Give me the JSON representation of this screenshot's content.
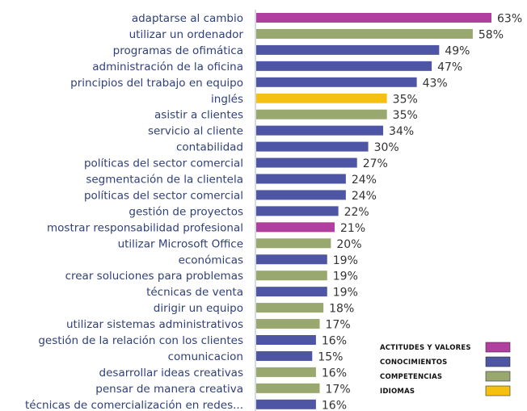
{
  "chart_data": {
    "type": "bar",
    "orientation": "horizontal",
    "title": "",
    "xlabel": "",
    "ylabel": "",
    "xlim": [
      0,
      63
    ],
    "value_suffix": "%",
    "grid": false,
    "legend_position": "bottom-right",
    "legend": [
      {
        "key": "actitudes",
        "label": "ACTITUDES Y VALORES",
        "color": "#b03fa0"
      },
      {
        "key": "conocimientos",
        "label": "CONOCIMIENTOS",
        "color": "#4d55a4"
      },
      {
        "key": "competencias",
        "label": "COMPETENCIAS",
        "color": "#98a86e"
      },
      {
        "key": "idiomas",
        "label": "IDIOMAS",
        "color": "#f5c010"
      }
    ],
    "categories": [
      "adaptarse al cambio",
      "utilizar un ordenador",
      "programas de ofimática",
      "administración de la oficina",
      "principios del trabajo en equipo",
      "inglés",
      "asistir a clientes",
      "servicio al cliente",
      "contabilidad",
      "políticas del sector comercial",
      "segmentación de la clientela",
      "políticas del sector comercial",
      "gestión de proyectos",
      "mostrar responsabilidad profesional",
      "utilizar Microsoft Office",
      "económicas",
      "crear soluciones para problemas",
      "técnicas de venta",
      "dirigir un equipo",
      "utilizar sistemas administrativos",
      "gestión de la relación con los clientes",
      "comunicacion",
      "desarrollar ideas creativas",
      "pensar de manera creativa",
      "técnicas de comercialización en redes..."
    ],
    "values": [
      63,
      58,
      49,
      47,
      43,
      35,
      35,
      34,
      30,
      27,
      24,
      24,
      22,
      21,
      20,
      19,
      19,
      19,
      18,
      17,
      16,
      15,
      16,
      17,
      16
    ],
    "groups": [
      "actitudes",
      "competencias",
      "conocimientos",
      "conocimientos",
      "conocimientos",
      "idiomas",
      "competencias",
      "conocimientos",
      "conocimientos",
      "conocimientos",
      "conocimientos",
      "conocimientos",
      "conocimientos",
      "actitudes",
      "competencias",
      "conocimientos",
      "competencias",
      "conocimientos",
      "competencias",
      "competencias",
      "conocimientos",
      "conocimientos",
      "competencias",
      "competencias",
      "conocimientos"
    ]
  }
}
